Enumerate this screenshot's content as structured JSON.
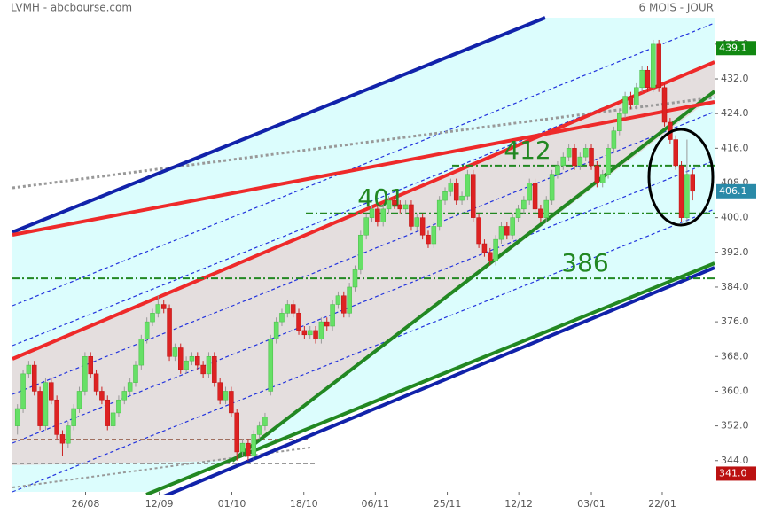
{
  "chart_data": {
    "type": "candlestick",
    "title": "LVMH - abcbourse.com",
    "subtitle": "6 MOIS - JOUR",
    "ylim": [
      336.8,
      446.1
    ],
    "yticks": [
      {
        "value": 344,
        "label": "344.0"
      },
      {
        "value": 352,
        "label": "352.0"
      },
      {
        "value": 360,
        "label": "360.0"
      },
      {
        "value": 368,
        "label": "368.0"
      },
      {
        "value": 376,
        "label": "376.0"
      },
      {
        "value": 384,
        "label": "384.0"
      },
      {
        "value": 392,
        "label": "392.0"
      },
      {
        "value": 400,
        "label": "400.0"
      },
      {
        "value": 408,
        "label": "408.0"
      },
      {
        "value": 416,
        "label": "416.0"
      },
      {
        "value": 424,
        "label": "424.0"
      },
      {
        "value": 432,
        "label": "432.0"
      },
      {
        "value": 440,
        "label": "440.0"
      }
    ],
    "xlim": [
      -0.9,
      123.9
    ],
    "xticks": [
      {
        "value": 12.1,
        "label": "26/08"
      },
      {
        "value": 25.2,
        "label": "12/09"
      },
      {
        "value": 38.1,
        "label": "01/10"
      },
      {
        "value": 50.9,
        "label": "18/10"
      },
      {
        "value": 63.6,
        "label": "06/11"
      },
      {
        "value": 76.4,
        "label": "25/11"
      },
      {
        "value": 89.1,
        "label": "12/12"
      },
      {
        "value": 102,
        "label": "03/01"
      },
      {
        "value": 114.6,
        "label": "22/01"
      }
    ],
    "up_color": "#66e066",
    "down_color": "#dd2222",
    "candles": [
      [
        352,
        357,
        350,
        356
      ],
      [
        356,
        365,
        355,
        364
      ],
      [
        364,
        367,
        363,
        366
      ],
      [
        366,
        367,
        359,
        360
      ],
      [
        360,
        361,
        351,
        352
      ],
      [
        352,
        363,
        351,
        362
      ],
      [
        362,
        363,
        357,
        358
      ],
      [
        358,
        359,
        349,
        350
      ],
      [
        350,
        351,
        345,
        348
      ],
      [
        348,
        353,
        347,
        352
      ],
      [
        352,
        357,
        351,
        356
      ],
      [
        356,
        361,
        355,
        360
      ],
      [
        360,
        369,
        359,
        368
      ],
      [
        368,
        369,
        363,
        364
      ],
      [
        364,
        365,
        359,
        360
      ],
      [
        360,
        361,
        357,
        358
      ],
      [
        358,
        359,
        351,
        352
      ],
      [
        352,
        356,
        351,
        355
      ],
      [
        355,
        359,
        354,
        358
      ],
      [
        358,
        361,
        357,
        360
      ],
      [
        360,
        363,
        359,
        362
      ],
      [
        362,
        367,
        361,
        366
      ],
      [
        366,
        373,
        365,
        372
      ],
      [
        372,
        377,
        371,
        376
      ],
      [
        376,
        379,
        375,
        378
      ],
      [
        378,
        382,
        377,
        380
      ],
      [
        380,
        381,
        378,
        379
      ],
      [
        379,
        380,
        367,
        368
      ],
      [
        368,
        371,
        367,
        370
      ],
      [
        370,
        371,
        364,
        365
      ],
      [
        365,
        368,
        364,
        367
      ],
      [
        367,
        369,
        366,
        368
      ],
      [
        368,
        369,
        365,
        366
      ],
      [
        366,
        367,
        363,
        364
      ],
      [
        364,
        369,
        363,
        368
      ],
      [
        368,
        369,
        361,
        362
      ],
      [
        362,
        363,
        357,
        358
      ],
      [
        358,
        361,
        357,
        360
      ],
      [
        360,
        361,
        354,
        355
      ],
      [
        355,
        356,
        344,
        346
      ],
      [
        346,
        349,
        345,
        348
      ],
      [
        348,
        349,
        344,
        345
      ],
      [
        345,
        351,
        344,
        350
      ],
      [
        350,
        353,
        349,
        352
      ],
      [
        352,
        355,
        351,
        354
      ],
      [
        360,
        373,
        359,
        372
      ],
      [
        372,
        377,
        371,
        376
      ],
      [
        376,
        379,
        375,
        378
      ],
      [
        378,
        381,
        377,
        380
      ],
      [
        380,
        381,
        377,
        378
      ],
      [
        378,
        379,
        373,
        374
      ],
      [
        374,
        375,
        372,
        373
      ],
      [
        373,
        375,
        372,
        374
      ],
      [
        374,
        375,
        371,
        372
      ],
      [
        372,
        377,
        371,
        376
      ],
      [
        376,
        377,
        374,
        375
      ],
      [
        375,
        381,
        374,
        380
      ],
      [
        380,
        383,
        379,
        382
      ],
      [
        382,
        383,
        377,
        378
      ],
      [
        378,
        385,
        377,
        384
      ],
      [
        384,
        389,
        383,
        388
      ],
      [
        388,
        397,
        387,
        396
      ],
      [
        396,
        401,
        395,
        400
      ],
      [
        400,
        403,
        399,
        402
      ],
      [
        402,
        403,
        398,
        399
      ],
      [
        399,
        403,
        398,
        402
      ],
      [
        402,
        405,
        401,
        404
      ],
      [
        404,
        405,
        402,
        403
      ],
      [
        403,
        404,
        401,
        402
      ],
      [
        402,
        404,
        401,
        403
      ],
      [
        403,
        404,
        397,
        398
      ],
      [
        398,
        401,
        397,
        400
      ],
      [
        400,
        401,
        395,
        396
      ],
      [
        396,
        397,
        393,
        394
      ],
      [
        394,
        399,
        393,
        398
      ],
      [
        398,
        405,
        397,
        404
      ],
      [
        404,
        407,
        403,
        406
      ],
      [
        406,
        409,
        405,
        408
      ],
      [
        408,
        409,
        403,
        404
      ],
      [
        404,
        406,
        403,
        405
      ],
      [
        405,
        411,
        404,
        410
      ],
      [
        410,
        411,
        399,
        400
      ],
      [
        400,
        401,
        393,
        394
      ],
      [
        394,
        395,
        391,
        392
      ],
      [
        392,
        393,
        389,
        390
      ],
      [
        390,
        396,
        389,
        395
      ],
      [
        395,
        399,
        394,
        398
      ],
      [
        398,
        399,
        395,
        396
      ],
      [
        396,
        401,
        395,
        400
      ],
      [
        400,
        403,
        399,
        402
      ],
      [
        402,
        405,
        401,
        404
      ],
      [
        404,
        409,
        403,
        408
      ],
      [
        408,
        409,
        401,
        402
      ],
      [
        402,
        403,
        399,
        400
      ],
      [
        400,
        405,
        399,
        404
      ],
      [
        404,
        411,
        403,
        410
      ],
      [
        410,
        413,
        409,
        412
      ],
      [
        412,
        415,
        411,
        414
      ],
      [
        414,
        417,
        413,
        416
      ],
      [
        416,
        417,
        411,
        412
      ],
      [
        412,
        415,
        411,
        414
      ],
      [
        414,
        417,
        413,
        416
      ],
      [
        416,
        417,
        411,
        412
      ],
      [
        412,
        413,
        407,
        408
      ],
      [
        408,
        411,
        407,
        410
      ],
      [
        410,
        417,
        409,
        416
      ],
      [
        416,
        421,
        415,
        420
      ],
      [
        420,
        425,
        419,
        424
      ],
      [
        424,
        429,
        423,
        428
      ],
      [
        428,
        429,
        425,
        426
      ],
      [
        426,
        431,
        425,
        430
      ],
      [
        430,
        435,
        429,
        434
      ],
      [
        434,
        435,
        429,
        430
      ],
      [
        430,
        441,
        429,
        440
      ],
      [
        440,
        441,
        429,
        430
      ],
      [
        430,
        431,
        421,
        422
      ],
      [
        422,
        423,
        417,
        418
      ],
      [
        418,
        419,
        411,
        412
      ],
      [
        412,
        413,
        399,
        400
      ],
      [
        400,
        418,
        399,
        410
      ],
      [
        410,
        411,
        404,
        406.1
      ]
    ],
    "levels": [
      {
        "value": 412,
        "color": "#228822"
      },
      {
        "value": 401,
        "color": "#228822"
      },
      {
        "value": 386,
        "color": "#228822"
      }
    ],
    "price_tags": [
      {
        "value": 439.1,
        "label": "439.1",
        "color": "#118811"
      },
      {
        "value": 406.1,
        "label": "406.1",
        "color": "#2a8aa8"
      },
      {
        "value": 341,
        "label": "341.0",
        "color": "#bb1111"
      }
    ]
  }
}
